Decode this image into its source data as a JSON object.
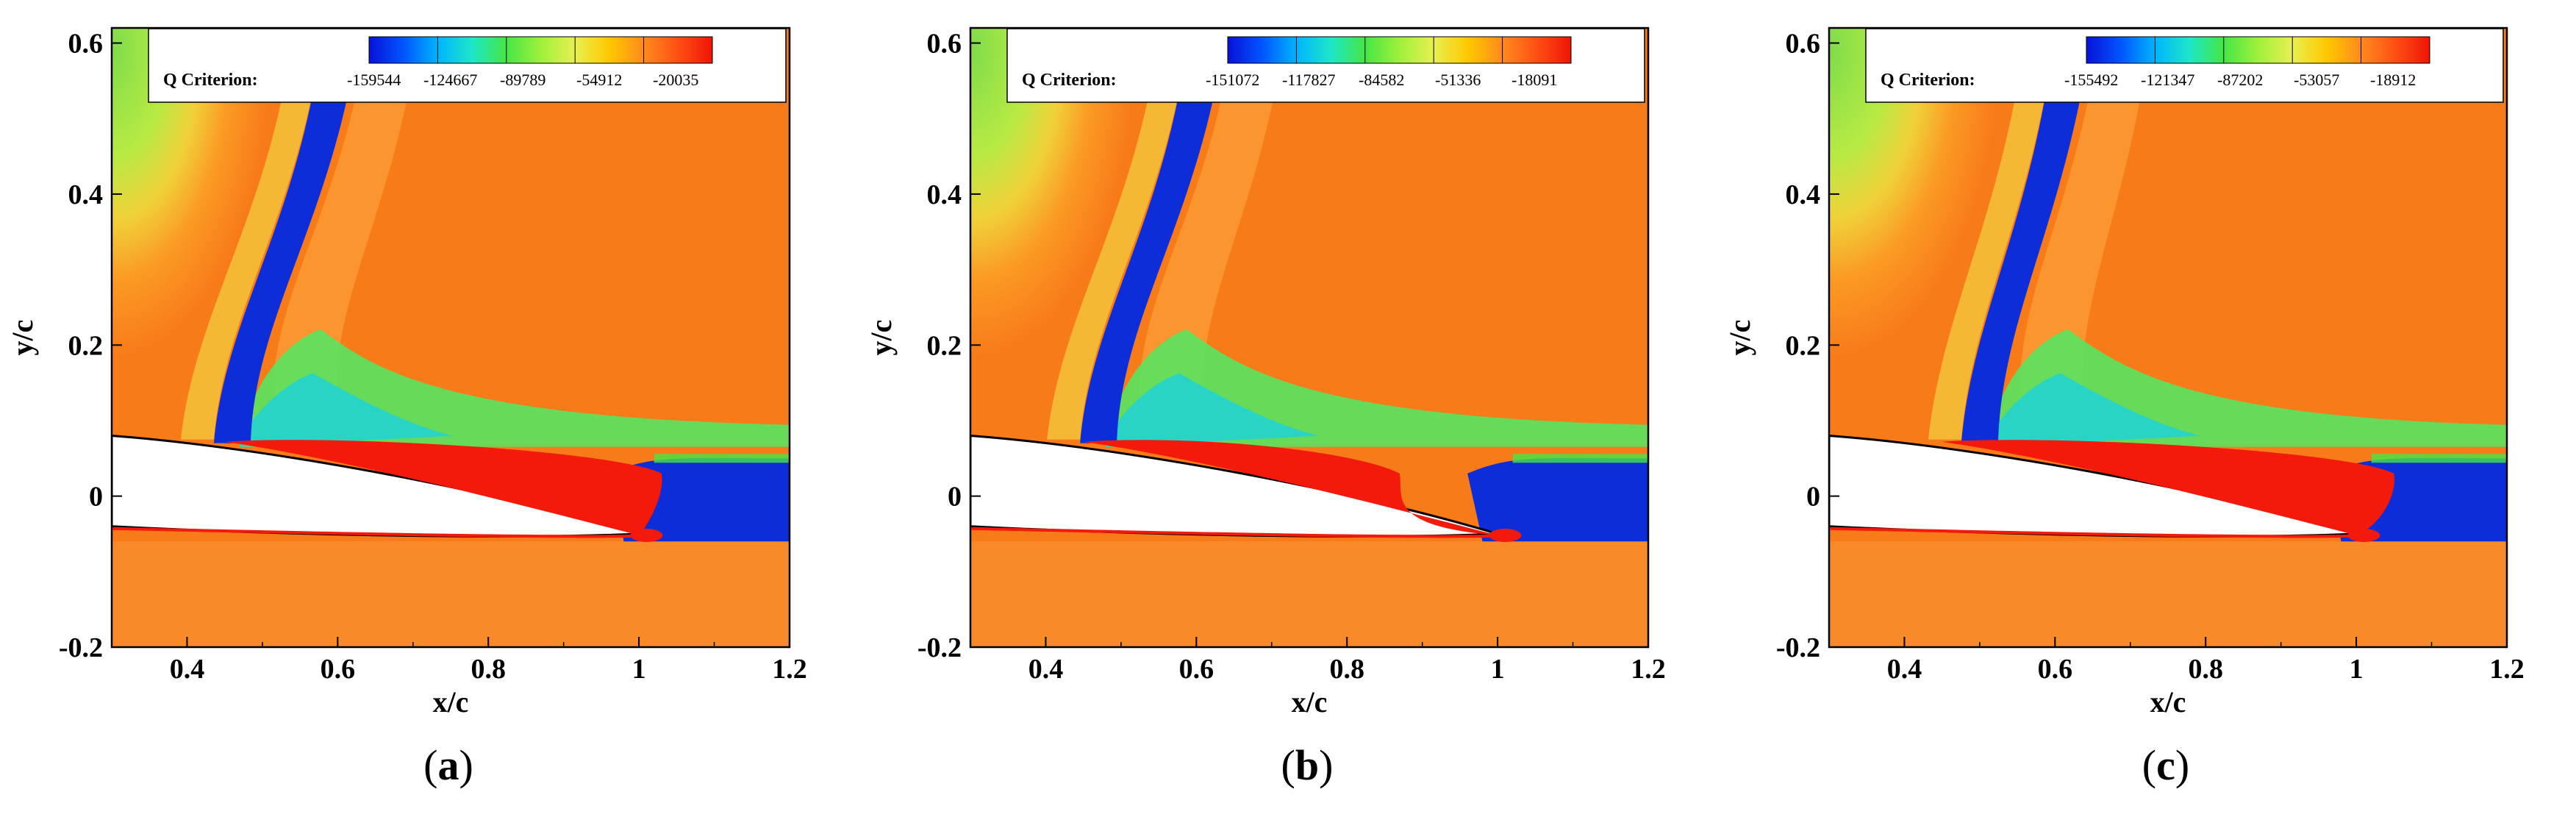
{
  "colors": {
    "colormap": [
      "#0a10d8",
      "#0055ff",
      "#00b4ff",
      "#1ee6c8",
      "#46e646",
      "#9ff03c",
      "#e8f050",
      "#ffc800",
      "#ff8a1e",
      "#ff5014",
      "#f01408"
    ],
    "background_field": "#f87b1a",
    "freestream_green": "#8ee04a",
    "shock_blue": "#0c2dd8",
    "separation_red": "#f31a0c",
    "airfoil": "#ffffff"
  },
  "chart_data": [
    {
      "type": "heatmap",
      "panel_label": "a",
      "xlabel": "x/c",
      "ylabel": "y/c",
      "xlim": [
        0.3,
        1.2
      ],
      "ylim": [
        -0.2,
        0.62
      ],
      "xticks": [
        "0.4",
        "0.6",
        "0.8",
        "1",
        "1.2"
      ],
      "yticks": [
        "-0.2",
        "0",
        "0.2",
        "0.4",
        "0.6"
      ],
      "colorbar_title": "Q Criterion:",
      "colorbar_ticks": [
        "-159544",
        "-124667",
        "-89789",
        "-54912",
        "-20035"
      ],
      "flow_features": {
        "shock_x_at_surface": 0.46,
        "shock_x_at_top": 0.6,
        "separation_end_x": 1.03,
        "wake_blue_end_x": 1.2
      }
    },
    {
      "type": "heatmap",
      "panel_label": "b",
      "xlabel": "x/c",
      "ylabel": "y/c",
      "xlim": [
        0.3,
        1.2
      ],
      "ylim": [
        -0.2,
        0.62
      ],
      "xticks": [
        "0.4",
        "0.6",
        "0.8",
        "1",
        "1.2"
      ],
      "yticks": [
        "-0.2",
        "0",
        "0.2",
        "0.4",
        "0.6"
      ],
      "colorbar_title": "Q Criterion:",
      "colorbar_ticks": [
        "-151072",
        "-117827",
        "-84582",
        "-51336",
        "-18091"
      ],
      "flow_features": {
        "shock_x_at_surface": 0.47,
        "shock_x_at_top": 0.61,
        "separation_end_x": 0.87,
        "wake_blue_end_x": 1.2
      }
    },
    {
      "type": "heatmap",
      "panel_label": "c",
      "xlabel": "x/c",
      "ylabel": "y/c",
      "xlim": [
        0.3,
        1.2
      ],
      "ylim": [
        -0.2,
        0.62
      ],
      "xticks": [
        "0.4",
        "0.6",
        "0.8",
        "1",
        "1.2"
      ],
      "yticks": [
        "-0.2",
        "0",
        "0.2",
        "0.4",
        "0.6"
      ],
      "colorbar_title": "Q Criterion:",
      "colorbar_ticks": [
        "-155492",
        "-121347",
        "-87202",
        "-53057",
        "-18912"
      ],
      "flow_features": {
        "shock_x_at_surface": 0.5,
        "shock_x_at_top": 0.62,
        "separation_end_x": 1.05,
        "wake_blue_end_x": 1.2
      }
    }
  ]
}
